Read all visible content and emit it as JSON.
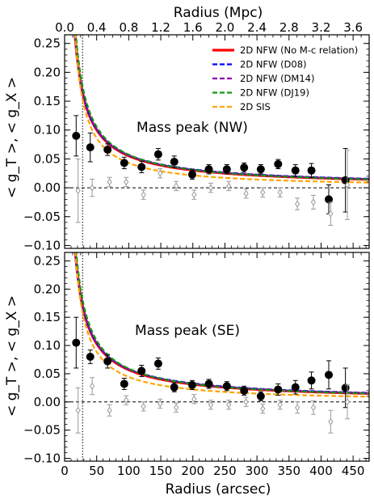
{
  "figure": {
    "top_axis_label": "Radius (Mpc)",
    "bottom_axis_label": "Radius (arcsec)",
    "top_ticks": [
      "0.0",
      "0.4",
      "0.8",
      "1.2",
      "1.6",
      "2.0",
      "2.4",
      "2.8",
      "3.2",
      "3.6"
    ],
    "bottom_ticks": [
      "0",
      "50",
      "100",
      "150",
      "200",
      "250",
      "300",
      "350",
      "400",
      "450"
    ],
    "y_ticks": [
      "−0.10",
      "−0.05",
      "0.00",
      "0.05",
      "0.10",
      "0.15",
      "0.20",
      "0.25"
    ]
  },
  "legend": {
    "entries": [
      {
        "label": "2D NFW (No M-c relation)",
        "color": "#ff0000"
      },
      {
        "label": "2D NFW (D08)",
        "color": "#0000ff"
      },
      {
        "label": "2D NFW (DM14)",
        "color": "#8800aa"
      },
      {
        "label": "2D NFW (DJ19)",
        "color": "#119911"
      },
      {
        "label": "2D SIS",
        "color": "#ffa500"
      }
    ]
  },
  "chart_data": [
    {
      "type": "scatter",
      "panel_label": "Mass peak (NW)",
      "ylabel": "< g_T >, < g_X >",
      "xlabel": "",
      "xlim": [
        0,
        475
      ],
      "ylim": [
        -0.105,
        0.265
      ],
      "top_xlim_mpc": [
        0,
        3.8
      ],
      "vertical_marker_x": 28,
      "series": [
        {
          "name": "",
          "kind": "tangential",
          "x": [
            18,
            40,
            67,
            93,
            120,
            146,
            171,
            199,
            225,
            253,
            280,
            306,
            333,
            360,
            385,
            412,
            438
          ],
          "y": [
            0.09,
            0.07,
            0.066,
            0.043,
            0.036,
            0.058,
            0.045,
            0.023,
            0.032,
            0.032,
            0.035,
            0.032,
            0.041,
            0.03,
            0.03,
            -0.02,
            0.013
          ],
          "err": [
            0.035,
            0.025,
            0.01,
            0.01,
            0.01,
            0.01,
            0.01,
            0.008,
            0.008,
            0.008,
            0.008,
            0.008,
            0.008,
            0.01,
            0.012,
            0.025,
            0.055
          ]
        },
        {
          "name": "",
          "kind": "cross",
          "x": [
            21,
            43,
            70,
            96,
            123,
            149,
            174,
            202,
            228,
            256,
            283,
            309,
            336,
            363,
            388,
            415,
            441
          ],
          "y": [
            -0.005,
            0.0,
            0.01,
            0.01,
            -0.012,
            0.025,
            0.003,
            -0.012,
            0.0,
            0.003,
            -0.01,
            -0.008,
            -0.008,
            -0.028,
            -0.025,
            -0.045,
            0.005
          ],
          "err": [
            0.055,
            0.015,
            0.008,
            0.008,
            0.008,
            0.008,
            0.008,
            0.008,
            0.008,
            0.008,
            0.008,
            0.008,
            0.008,
            0.01,
            0.012,
            0.02,
            0.06
          ]
        }
      ]
    },
    {
      "type": "scatter",
      "panel_label": "Mass peak (SE)",
      "ylabel": "< g_T >, < g_X >",
      "xlabel": "Radius (arcsec)",
      "xlim": [
        0,
        475
      ],
      "ylim": [
        -0.105,
        0.265
      ],
      "top_xlim_mpc": [
        0,
        3.8
      ],
      "vertical_marker_x": 28,
      "series": [
        {
          "name": "",
          "kind": "tangential",
          "x": [
            18,
            40,
            67,
            93,
            120,
            146,
            171,
            199,
            225,
            253,
            280,
            306,
            333,
            360,
            385,
            412,
            438
          ],
          "y": [
            0.105,
            0.08,
            0.072,
            0.032,
            0.055,
            0.068,
            0.026,
            0.03,
            0.032,
            0.028,
            0.02,
            0.01,
            0.022,
            0.026,
            0.038,
            0.048,
            0.025
          ],
          "err": [
            0.045,
            0.012,
            0.012,
            0.01,
            0.01,
            0.01,
            0.008,
            0.008,
            0.008,
            0.008,
            0.008,
            0.008,
            0.01,
            0.012,
            0.015,
            0.025,
            0.035
          ]
        },
        {
          "name": "",
          "kind": "cross",
          "x": [
            21,
            43,
            70,
            96,
            123,
            149,
            174,
            202,
            228,
            256,
            283,
            309,
            336,
            363,
            388,
            415,
            441
          ],
          "y": [
            -0.015,
            0.028,
            -0.015,
            0.003,
            -0.008,
            -0.003,
            -0.01,
            0.005,
            -0.005,
            -0.005,
            0.0,
            -0.012,
            -0.005,
            -0.01,
            -0.01,
            -0.035,
            0.0
          ],
          "err": [
            0.04,
            0.015,
            0.01,
            0.008,
            0.008,
            0.008,
            0.008,
            0.008,
            0.008,
            0.008,
            0.008,
            0.008,
            0.008,
            0.01,
            0.012,
            0.02,
            0.03
          ]
        }
      ]
    }
  ]
}
